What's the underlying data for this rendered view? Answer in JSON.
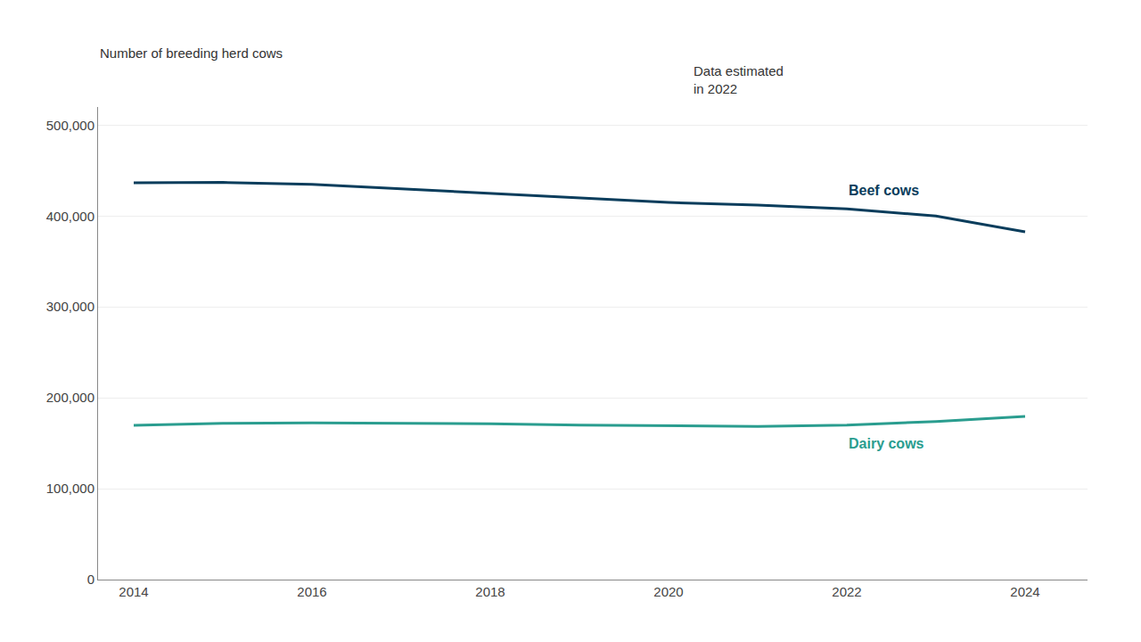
{
  "chart_data": {
    "type": "line",
    "ylabel": "Number of breeding herd cows",
    "annotations": [
      "Data estimated\nin 2022"
    ],
    "x": [
      2014,
      2015,
      2016,
      2017,
      2018,
      2019,
      2020,
      2021,
      2022,
      2023,
      2024
    ],
    "series": [
      {
        "name": "Beef cows",
        "color": "#0a3d5c",
        "values": [
          436500,
          437000,
          435000,
          430000,
          425000,
          420000,
          415000,
          412000,
          408000,
          400000,
          382600
        ]
      },
      {
        "name": "Dairy cows",
        "color": "#2a9d8f",
        "values": [
          169700,
          172000,
          172500,
          172000,
          171500,
          170000,
          169000,
          168500,
          170000,
          174000,
          179600
        ]
      }
    ],
    "xlim": [
      2013.6,
      2024.7
    ],
    "xticks": [
      2014,
      2016,
      2018,
      2020,
      2022,
      2024
    ],
    "ylim": [
      0,
      520000
    ],
    "yticks": [
      0,
      {
        "value": 100000,
        "label": "100,000"
      },
      {
        "value": 200000,
        "label": "200,000"
      },
      {
        "value": 300000,
        "label": "300,000"
      },
      {
        "value": 400000,
        "label": "400,000"
      },
      {
        "value": 500000,
        "label": "500,000"
      }
    ],
    "grid": "y"
  }
}
